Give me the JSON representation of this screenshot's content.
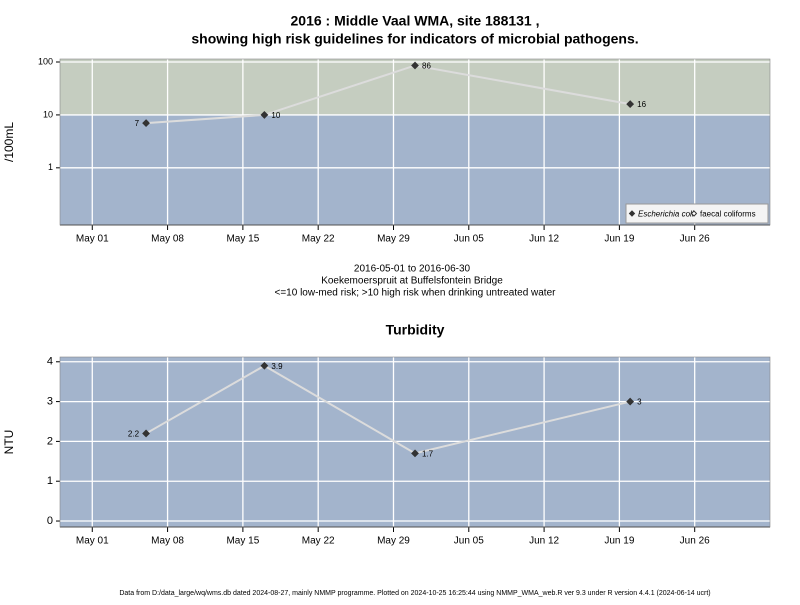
{
  "chart_data": [
    {
      "type": "line",
      "title": "2016 : Middle Vaal WMA, site 188131 ,",
      "title_line2": "showing high risk guidelines for indicators of microbial pathogens.",
      "ylabel": "/100mL",
      "log": true,
      "ylim": [
        0.083,
        114
      ],
      "yticks": [
        1,
        10,
        100
      ],
      "xlim": [
        "2016-04-28",
        "2016-07-03"
      ],
      "xticks": [
        {
          "value": "2016-05-01",
          "label": "May 01"
        },
        {
          "value": "2016-05-08",
          "label": "May 08"
        },
        {
          "value": "2016-05-15",
          "label": "May 15"
        },
        {
          "value": "2016-05-22",
          "label": "May 22"
        },
        {
          "value": "2016-05-29",
          "label": "May 29"
        },
        {
          "value": "2016-06-05",
          "label": "Jun 05"
        },
        {
          "value": "2016-06-12",
          "label": "Jun 12"
        },
        {
          "value": "2016-06-19",
          "label": "Jun 19"
        },
        {
          "value": "2016-06-26",
          "label": "Jun 26"
        }
      ],
      "x": [
        "2016-05-06",
        "2016-05-17",
        "2016-05-31",
        "2016-06-20"
      ],
      "threshold": 10,
      "band_colors": [
        "#a3b4cc",
        "#c5cdc0"
      ],
      "line_color": "#dcdcdc",
      "grid": true,
      "legend": "bottom-right",
      "series": [
        {
          "name": "Escherichia coli",
          "marker": "filled",
          "color": "#333333",
          "values": [
            7,
            10,
            86,
            16
          ]
        },
        {
          "name": "faecal coliforms",
          "marker": "open",
          "color": "#333333",
          "values": [
            null,
            null,
            null,
            null
          ]
        }
      ],
      "notes": [
        "2016-05-01 to 2016-06-30",
        "Koekemoerspruit at Buffelsfontein Bridge",
        "<=10 low-med risk; >10 high risk when drinking untreated water"
      ]
    },
    {
      "type": "line",
      "title": "Turbidity",
      "ylabel": "NTU",
      "ylim": [
        -0.15,
        4.12
      ],
      "yticks": [
        0,
        1,
        2,
        3,
        4
      ],
      "xlim": [
        "2016-04-28",
        "2016-07-03"
      ],
      "xticks": [
        {
          "value": "2016-05-01",
          "label": "May 01"
        },
        {
          "value": "2016-05-08",
          "label": "May 08"
        },
        {
          "value": "2016-05-15",
          "label": "May 15"
        },
        {
          "value": "2016-05-22",
          "label": "May 22"
        },
        {
          "value": "2016-05-29",
          "label": "May 29"
        },
        {
          "value": "2016-06-05",
          "label": "Jun 05"
        },
        {
          "value": "2016-06-12",
          "label": "Jun 12"
        },
        {
          "value": "2016-06-19",
          "label": "Jun 19"
        },
        {
          "value": "2016-06-26",
          "label": "Jun 26"
        }
      ],
      "x": [
        "2016-05-06",
        "2016-05-17",
        "2016-05-31",
        "2016-06-20"
      ],
      "background": "#a3b4cc",
      "line_color": "#dcdcdc",
      "grid": true,
      "series": [
        {
          "name": "Turbidity",
          "color": "#333333",
          "values": [
            2.2,
            3.9,
            1.7,
            3
          ]
        }
      ]
    }
  ],
  "footer": "Data from D:/data_large/wq/wms.db dated 2024-08-27, mainly NMMP programme. Plotted on 2024-10-25 16:25:44 using NMMP_WMA_web.R ver 9.3 under R version 4.4.1 (2024-06-14 ucrt)"
}
